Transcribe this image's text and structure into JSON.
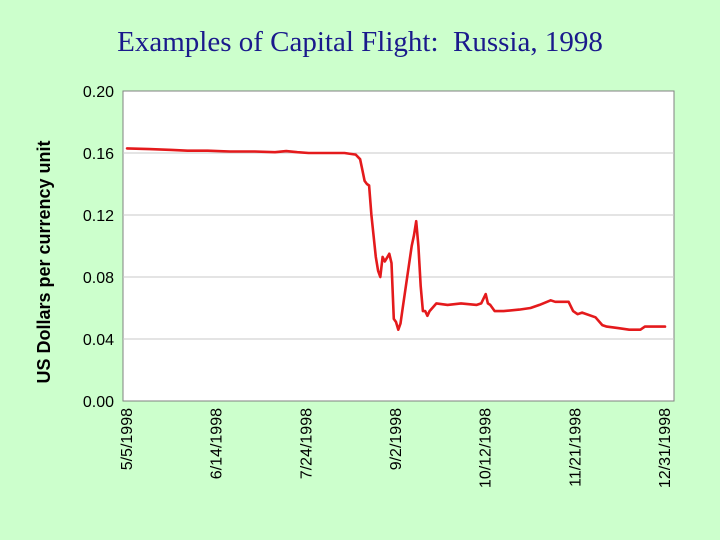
{
  "slide": {
    "title": "Examples of Capital Flight:  Russia, 1998",
    "background_color": "#ccffcc",
    "title_color": "#1a1a8c"
  },
  "chart_data": {
    "type": "line",
    "title": "",
    "xlabel": "",
    "ylabel": "US Dollars per currency unit",
    "ylim": [
      0,
      0.2
    ],
    "y_ticks": [
      "0.00",
      "0.04",
      "0.08",
      "0.12",
      "0.16",
      "0.20"
    ],
    "xlim": [
      "1998-05-05",
      "1999-01-04"
    ],
    "x_ticks": [
      "5/5/1998",
      "6/14/1998",
      "7/24/1998",
      "9/2/1998",
      "10/12/1998",
      "11/21/1998",
      "12/31/1998"
    ],
    "grid": {
      "horizontal": true,
      "vertical": false
    },
    "legend": "none",
    "plot_background": "#ffffff",
    "series": [
      {
        "color": "#e41a1c",
        "x": [
          "1998-05-05",
          "1998-05-15",
          "1998-05-25",
          "1998-06-01",
          "1998-06-10",
          "1998-06-20",
          "1998-07-01",
          "1998-07-10",
          "1998-07-15",
          "1998-07-20",
          "1998-07-25",
          "1998-08-01",
          "1998-08-10",
          "1998-08-15",
          "1998-08-17",
          "1998-08-18",
          "1998-08-19",
          "1998-08-20",
          "1998-08-21",
          "1998-08-22",
          "1998-08-24",
          "1998-08-25",
          "1998-08-26",
          "1998-08-27",
          "1998-08-28",
          "1998-08-30",
          "1998-08-31",
          "1998-09-01",
          "1998-09-02",
          "1998-09-03",
          "1998-09-04",
          "1998-09-05",
          "1998-09-07",
          "1998-09-09",
          "1998-09-10",
          "1998-09-11",
          "1998-09-12",
          "1998-09-13",
          "1998-09-14",
          "1998-09-15",
          "1998-09-16",
          "1998-09-17",
          "1998-09-20",
          "1998-09-25",
          "1998-10-01",
          "1998-10-08",
          "1998-10-10",
          "1998-10-12",
          "1998-10-13",
          "1998-10-14",
          "1998-10-16",
          "1998-10-20",
          "1998-10-27",
          "1998-11-01",
          "1998-11-05",
          "1998-11-10",
          "1998-11-12",
          "1998-11-18",
          "1998-11-20",
          "1998-11-22",
          "1998-11-24",
          "1998-11-30",
          "1998-12-03",
          "1998-12-05",
          "1998-12-10",
          "1998-12-15",
          "1998-12-20",
          "1998-12-22",
          "1998-12-25",
          "1998-12-31"
        ],
        "y": [
          0.163,
          0.1625,
          0.162,
          0.1615,
          0.1615,
          0.161,
          0.161,
          0.1605,
          0.1612,
          0.1605,
          0.16,
          0.16,
          0.16,
          0.159,
          0.156,
          0.149,
          0.142,
          0.14,
          0.139,
          0.12,
          0.093,
          0.084,
          0.08,
          0.093,
          0.09,
          0.095,
          0.089,
          0.053,
          0.051,
          0.046,
          0.05,
          0.06,
          0.08,
          0.1,
          0.107,
          0.116,
          0.1,
          0.074,
          0.058,
          0.058,
          0.055,
          0.058,
          0.063,
          0.062,
          0.063,
          0.062,
          0.063,
          0.069,
          0.063,
          0.062,
          0.058,
          0.058,
          0.059,
          0.06,
          0.062,
          0.065,
          0.064,
          0.064,
          0.058,
          0.056,
          0.057,
          0.054,
          0.049,
          0.048,
          0.047,
          0.046,
          0.046,
          0.048,
          0.048,
          0.048
        ]
      }
    ]
  }
}
